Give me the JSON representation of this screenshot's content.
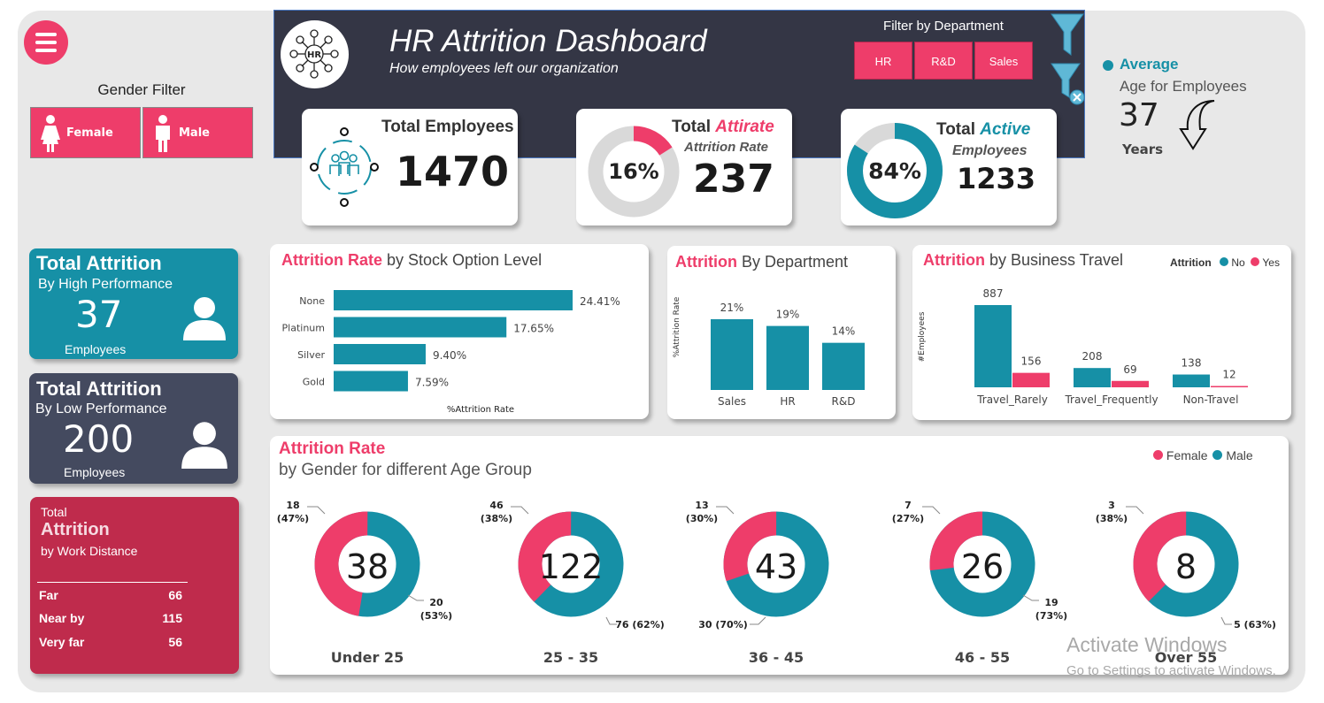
{
  "header": {
    "title": "HR Attrition Dashboard",
    "subtitle": "How employees left our organization",
    "logo_text": "HR",
    "filter_label": "Filter by Department",
    "departments": [
      "HR",
      "R&D",
      "Sales"
    ]
  },
  "gender_filter": {
    "label": "Gender Filter",
    "female": "Female",
    "male": "Male"
  },
  "kpis": {
    "total_employees": {
      "label": "Total Employees",
      "value": "1470"
    },
    "attrition": {
      "label_main": "Total ",
      "label_accent": "Attirate",
      "sub": "Attrition Rate",
      "percent": "16%",
      "percent_value": 16,
      "value": "237"
    },
    "active": {
      "label_main": "Total ",
      "label_accent": "Active",
      "sub": "Employees",
      "percent": "84%",
      "percent_value": 84,
      "value": "1233"
    }
  },
  "average_age": {
    "title": "Average",
    "sub": "Age for Employees",
    "value": "37",
    "unit": "Years"
  },
  "side": {
    "high": {
      "title": "Total Attrition",
      "sub": "By High Performance",
      "value": "37",
      "unit": "Employees"
    },
    "low": {
      "title": "Total Attrition",
      "sub": "By Low Performance",
      "value": "200",
      "unit": "Employees"
    },
    "distance": {
      "pre": "Total",
      "title": "Attrition",
      "sub": "by Work Distance",
      "rows": [
        {
          "label": "Far",
          "value": "66"
        },
        {
          "label": "Near by",
          "value": "115"
        },
        {
          "label": "Very far",
          "value": "56"
        }
      ]
    }
  },
  "stock_chart": {
    "title_hl": "Attrition Rate",
    "title_rest": " by Stock Option Level"
  },
  "dept_chart": {
    "title_hl": "Attrition",
    "title_rest": "  By Department"
  },
  "travel_chart": {
    "title_hl": "Attrition",
    "title_rest": " by Business Travel",
    "legend_title": "Attrition",
    "legend": [
      "No",
      "Yes"
    ]
  },
  "age_chart": {
    "title_hl": "Attrition Rate",
    "title_rest": "by Gender for different Age Group",
    "legend": [
      "Female",
      "Male"
    ]
  },
  "colors": {
    "teal": "#1690a6",
    "pink": "#ee3d6a",
    "navy": "#343645",
    "slate": "#444a5f",
    "crimson": "#bf2b4c",
    "grey": "#d9d9d9"
  },
  "icons": [
    "menu-icon",
    "hr-network-icon",
    "funnel-icon",
    "clear-filter-icon",
    "team-icon",
    "person-icon",
    "female-icon",
    "male-icon",
    "arrow-down-icon"
  ],
  "watermark": {
    "line1": "Activate Windows",
    "line2": "Go to Settings to activate Windows."
  },
  "chart_data": [
    {
      "type": "bar",
      "orientation": "horizontal",
      "categories": [
        "None",
        "Platinum",
        "Silver",
        "Gold"
      ],
      "values": [
        24.41,
        17.65,
        9.4,
        7.59
      ],
      "labels": [
        "24.41%",
        "17.65%",
        "9.40%",
        "7.59%"
      ],
      "xlabel": "%Attrition Rate",
      "xlim": [
        0,
        26
      ]
    },
    {
      "type": "bar",
      "categories": [
        "Sales",
        "HR",
        "R&D"
      ],
      "values": [
        21,
        19,
        14
      ],
      "labels": [
        "21%",
        "19%",
        "14%"
      ],
      "ylabel": "%Attrition Rate",
      "ylim": [
        0,
        26
      ]
    },
    {
      "type": "bar",
      "categories": [
        "Travel_Rarely",
        "Travel_Frequently",
        "Non-Travel"
      ],
      "series": [
        {
          "name": "No",
          "values": [
            887,
            208,
            138
          ]
        },
        {
          "name": "Yes",
          "values": [
            156,
            69,
            12
          ]
        }
      ],
      "ylabel": "#Employees",
      "ylim": [
        0,
        1000
      ],
      "legend_position": "top-right"
    },
    {
      "type": "pie",
      "variant": "donut",
      "groups": [
        {
          "name": "Under 25",
          "total": "38",
          "female": 18,
          "female_label": "18",
          "female_pct": "(47%)",
          "male": 20,
          "male_label": "20",
          "male_pct": "(53%)"
        },
        {
          "name": "25 - 35",
          "total": "122",
          "female": 46,
          "female_label": "46",
          "female_pct": "(38%)",
          "male": 76,
          "male_label": "76 (62%)",
          "male_pct": ""
        },
        {
          "name": "36 - 45",
          "total": "43",
          "female": 13,
          "female_label": "13",
          "female_pct": "(30%)",
          "male": 30,
          "male_label": "30 (70%)",
          "male_pct": ""
        },
        {
          "name": "46 - 55",
          "total": "26",
          "female": 7,
          "female_label": "7",
          "female_pct": "(27%)",
          "male": 19,
          "male_label": "19",
          "male_pct": "(73%)"
        },
        {
          "name": "Over 55",
          "total": "8",
          "female": 3,
          "female_label": "3",
          "female_pct": "(38%)",
          "male": 5,
          "male_label": "5 (63%)",
          "male_pct": ""
        }
      ],
      "legend_position": "top-right"
    }
  ]
}
